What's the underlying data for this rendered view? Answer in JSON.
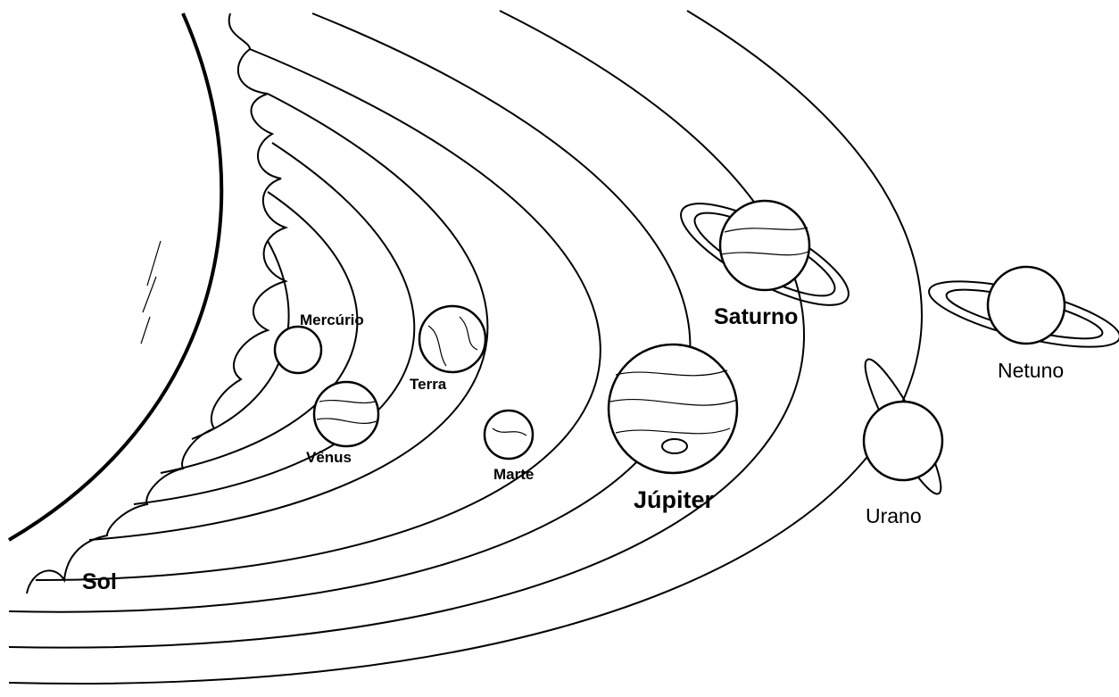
{
  "labels": {
    "sun": "Sol",
    "mercury": "Mercúrio",
    "venus": "Vênus",
    "earth": "Terra",
    "mars": "Marte",
    "jupiter": "Júpiter",
    "saturn": "Saturno",
    "uranus": "Urano",
    "neptune": "Netuno"
  }
}
